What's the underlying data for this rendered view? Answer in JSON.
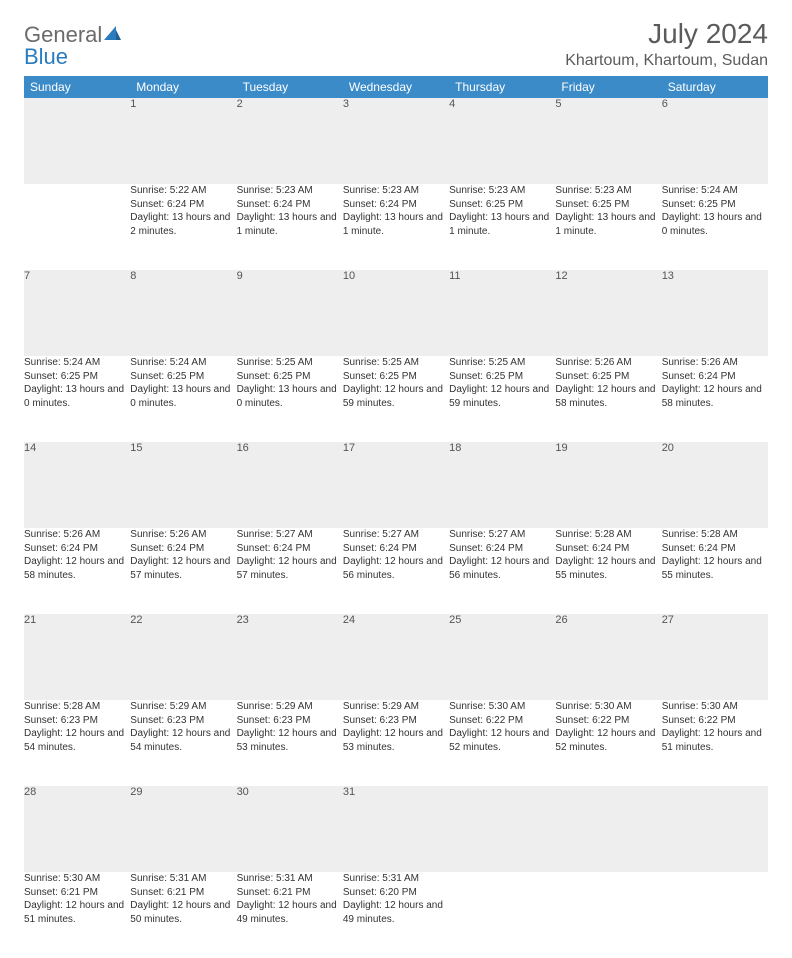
{
  "logo": {
    "word1": "General",
    "word2": "Blue"
  },
  "title": "July 2024",
  "location": "Khartoum, Khartoum, Sudan",
  "colors": {
    "header_bg": "#3b8bc9",
    "header_text": "#ffffff",
    "daynum_bg": "#eeeeee",
    "daynum_border_top": "#2f6fa3",
    "logo_gray": "#6b6b6b",
    "logo_blue": "#2b7bbf"
  },
  "weekdays": [
    "Sunday",
    "Monday",
    "Tuesday",
    "Wednesday",
    "Thursday",
    "Friday",
    "Saturday"
  ],
  "weeks": [
    [
      null,
      {
        "day": "1",
        "sunrise": "Sunrise: 5:22 AM",
        "sunset": "Sunset: 6:24 PM",
        "daylight": "Daylight: 13 hours and 2 minutes."
      },
      {
        "day": "2",
        "sunrise": "Sunrise: 5:23 AM",
        "sunset": "Sunset: 6:24 PM",
        "daylight": "Daylight: 13 hours and 1 minute."
      },
      {
        "day": "3",
        "sunrise": "Sunrise: 5:23 AM",
        "sunset": "Sunset: 6:24 PM",
        "daylight": "Daylight: 13 hours and 1 minute."
      },
      {
        "day": "4",
        "sunrise": "Sunrise: 5:23 AM",
        "sunset": "Sunset: 6:25 PM",
        "daylight": "Daylight: 13 hours and 1 minute."
      },
      {
        "day": "5",
        "sunrise": "Sunrise: 5:23 AM",
        "sunset": "Sunset: 6:25 PM",
        "daylight": "Daylight: 13 hours and 1 minute."
      },
      {
        "day": "6",
        "sunrise": "Sunrise: 5:24 AM",
        "sunset": "Sunset: 6:25 PM",
        "daylight": "Daylight: 13 hours and 0 minutes."
      }
    ],
    [
      {
        "day": "7",
        "sunrise": "Sunrise: 5:24 AM",
        "sunset": "Sunset: 6:25 PM",
        "daylight": "Daylight: 13 hours and 0 minutes."
      },
      {
        "day": "8",
        "sunrise": "Sunrise: 5:24 AM",
        "sunset": "Sunset: 6:25 PM",
        "daylight": "Daylight: 13 hours and 0 minutes."
      },
      {
        "day": "9",
        "sunrise": "Sunrise: 5:25 AM",
        "sunset": "Sunset: 6:25 PM",
        "daylight": "Daylight: 13 hours and 0 minutes."
      },
      {
        "day": "10",
        "sunrise": "Sunrise: 5:25 AM",
        "sunset": "Sunset: 6:25 PM",
        "daylight": "Daylight: 12 hours and 59 minutes."
      },
      {
        "day": "11",
        "sunrise": "Sunrise: 5:25 AM",
        "sunset": "Sunset: 6:25 PM",
        "daylight": "Daylight: 12 hours and 59 minutes."
      },
      {
        "day": "12",
        "sunrise": "Sunrise: 5:26 AM",
        "sunset": "Sunset: 6:25 PM",
        "daylight": "Daylight: 12 hours and 58 minutes."
      },
      {
        "day": "13",
        "sunrise": "Sunrise: 5:26 AM",
        "sunset": "Sunset: 6:24 PM",
        "daylight": "Daylight: 12 hours and 58 minutes."
      }
    ],
    [
      {
        "day": "14",
        "sunrise": "Sunrise: 5:26 AM",
        "sunset": "Sunset: 6:24 PM",
        "daylight": "Daylight: 12 hours and 58 minutes."
      },
      {
        "day": "15",
        "sunrise": "Sunrise: 5:26 AM",
        "sunset": "Sunset: 6:24 PM",
        "daylight": "Daylight: 12 hours and 57 minutes."
      },
      {
        "day": "16",
        "sunrise": "Sunrise: 5:27 AM",
        "sunset": "Sunset: 6:24 PM",
        "daylight": "Daylight: 12 hours and 57 minutes."
      },
      {
        "day": "17",
        "sunrise": "Sunrise: 5:27 AM",
        "sunset": "Sunset: 6:24 PM",
        "daylight": "Daylight: 12 hours and 56 minutes."
      },
      {
        "day": "18",
        "sunrise": "Sunrise: 5:27 AM",
        "sunset": "Sunset: 6:24 PM",
        "daylight": "Daylight: 12 hours and 56 minutes."
      },
      {
        "day": "19",
        "sunrise": "Sunrise: 5:28 AM",
        "sunset": "Sunset: 6:24 PM",
        "daylight": "Daylight: 12 hours and 55 minutes."
      },
      {
        "day": "20",
        "sunrise": "Sunrise: 5:28 AM",
        "sunset": "Sunset: 6:24 PM",
        "daylight": "Daylight: 12 hours and 55 minutes."
      }
    ],
    [
      {
        "day": "21",
        "sunrise": "Sunrise: 5:28 AM",
        "sunset": "Sunset: 6:23 PM",
        "daylight": "Daylight: 12 hours and 54 minutes."
      },
      {
        "day": "22",
        "sunrise": "Sunrise: 5:29 AM",
        "sunset": "Sunset: 6:23 PM",
        "daylight": "Daylight: 12 hours and 54 minutes."
      },
      {
        "day": "23",
        "sunrise": "Sunrise: 5:29 AM",
        "sunset": "Sunset: 6:23 PM",
        "daylight": "Daylight: 12 hours and 53 minutes."
      },
      {
        "day": "24",
        "sunrise": "Sunrise: 5:29 AM",
        "sunset": "Sunset: 6:23 PM",
        "daylight": "Daylight: 12 hours and 53 minutes."
      },
      {
        "day": "25",
        "sunrise": "Sunrise: 5:30 AM",
        "sunset": "Sunset: 6:22 PM",
        "daylight": "Daylight: 12 hours and 52 minutes."
      },
      {
        "day": "26",
        "sunrise": "Sunrise: 5:30 AM",
        "sunset": "Sunset: 6:22 PM",
        "daylight": "Daylight: 12 hours and 52 minutes."
      },
      {
        "day": "27",
        "sunrise": "Sunrise: 5:30 AM",
        "sunset": "Sunset: 6:22 PM",
        "daylight": "Daylight: 12 hours and 51 minutes."
      }
    ],
    [
      {
        "day": "28",
        "sunrise": "Sunrise: 5:30 AM",
        "sunset": "Sunset: 6:21 PM",
        "daylight": "Daylight: 12 hours and 51 minutes."
      },
      {
        "day": "29",
        "sunrise": "Sunrise: 5:31 AM",
        "sunset": "Sunset: 6:21 PM",
        "daylight": "Daylight: 12 hours and 50 minutes."
      },
      {
        "day": "30",
        "sunrise": "Sunrise: 5:31 AM",
        "sunset": "Sunset: 6:21 PM",
        "daylight": "Daylight: 12 hours and 49 minutes."
      },
      {
        "day": "31",
        "sunrise": "Sunrise: 5:31 AM",
        "sunset": "Sunset: 6:20 PM",
        "daylight": "Daylight: 12 hours and 49 minutes."
      },
      null,
      null,
      null
    ]
  ]
}
